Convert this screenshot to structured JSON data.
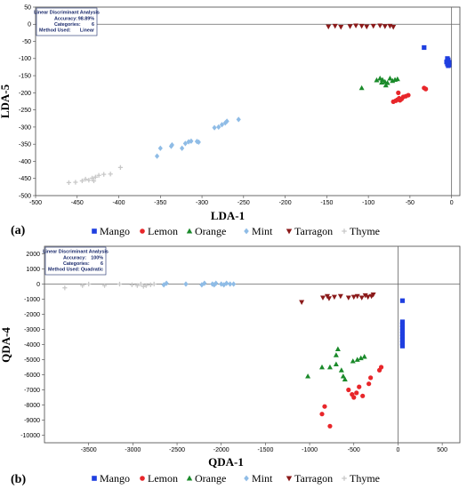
{
  "legend": [
    {
      "name": "Mango",
      "color": "#1f3fe0",
      "shape": "square"
    },
    {
      "name": "Lemon",
      "color": "#e8262a",
      "shape": "circle"
    },
    {
      "name": "Orange",
      "color": "#1a8a2a",
      "shape": "triangle-up"
    },
    {
      "name": "Mint",
      "color": "#8fbce6",
      "shape": "diamond"
    },
    {
      "name": "Tarragon",
      "color": "#8b1a1a",
      "shape": "triangle-down"
    },
    {
      "name": "Thyme",
      "color": "#c8c8c8",
      "shape": "plus"
    }
  ],
  "chart_data": [
    {
      "type": "scatter",
      "panel_label": "(a)",
      "xlabel": "LDA-1",
      "ylabel": "LDA-5",
      "xlim": [
        -500,
        10
      ],
      "ylim": [
        -500,
        50
      ],
      "xticks": [
        -500,
        -450,
        -400,
        -350,
        -300,
        -250,
        -200,
        -150,
        -100,
        -50,
        0
      ],
      "yticks": [
        50,
        0,
        -50,
        -100,
        -150,
        -200,
        -250,
        -300,
        -350,
        -400,
        -450,
        -500
      ],
      "info": {
        "title": "Linear Discriminant Analysis",
        "rows": [
          {
            "label": "Accuracy:",
            "value": "98.89%"
          },
          {
            "label": "Categories:",
            "value": "6"
          },
          {
            "label": "Method Used:",
            "value": "Linear"
          }
        ]
      },
      "series": [
        {
          "name": "Mango",
          "points": [
            [
              -33,
              -68
            ],
            [
              -5,
              -100
            ],
            [
              -4,
              -104
            ],
            [
              -5,
              -108
            ],
            [
              -3,
              -111
            ],
            [
              -4,
              -113
            ],
            [
              -5,
              -116
            ],
            [
              -3,
              -119
            ],
            [
              -4,
              -121
            ],
            [
              -6,
              -110
            ]
          ]
        },
        {
          "name": "Lemon",
          "points": [
            [
              -70,
              -226
            ],
            [
              -67,
              -223
            ],
            [
              -65,
              -220
            ],
            [
              -62,
              -222
            ],
            [
              -60,
              -218
            ],
            [
              -63,
              -216
            ],
            [
              -58,
              -212
            ],
            [
              -55,
              -210
            ],
            [
              -52,
              -207
            ],
            [
              -33,
              -186
            ],
            [
              -31,
              -189
            ],
            [
              -64,
              -200
            ]
          ]
        },
        {
          "name": "Orange",
          "points": [
            [
              -108,
              -186
            ],
            [
              -90,
              -163
            ],
            [
              -86,
              -158
            ],
            [
              -83,
              -162
            ],
            [
              -80,
              -168
            ],
            [
              -77,
              -171
            ],
            [
              -74,
              -158
            ],
            [
              -71,
              -165
            ],
            [
              -68,
              -162
            ],
            [
              -65,
              -160
            ],
            [
              -79,
              -178
            ],
            [
              -84,
              -170
            ]
          ]
        },
        {
          "name": "Mint",
          "points": [
            [
              -354,
              -385
            ],
            [
              -350,
              -362
            ],
            [
              -337,
              -356
            ],
            [
              -336,
              -352
            ],
            [
              -324,
              -362
            ],
            [
              -320,
              -348
            ],
            [
              -316,
              -343
            ],
            [
              -313,
              -341
            ],
            [
              -306,
              -342
            ],
            [
              -304,
              -344
            ],
            [
              -285,
              -302
            ],
            [
              -280,
              -300
            ],
            [
              -276,
              -293
            ],
            [
              -272,
              -288
            ],
            [
              -270,
              -283
            ],
            [
              -256,
              -278
            ]
          ]
        },
        {
          "name": "Tarragon",
          "points": [
            [
              -148,
              -7
            ],
            [
              -140,
              -5
            ],
            [
              -133,
              -8
            ],
            [
              -122,
              -6
            ],
            [
              -115,
              -4
            ],
            [
              -108,
              -5
            ],
            [
              -102,
              -7
            ],
            [
              -94,
              -5
            ],
            [
              -86,
              -4
            ],
            [
              -80,
              -6
            ],
            [
              -74,
              -5
            ],
            [
              -70,
              -8
            ]
          ]
        },
        {
          "name": "Thyme",
          "points": [
            [
              -460,
              -462
            ],
            [
              -452,
              -461
            ],
            [
              -444,
              -457
            ],
            [
              -440,
              -452
            ],
            [
              -436,
              -455
            ],
            [
              -432,
              -449
            ],
            [
              -428,
              -446
            ],
            [
              -424,
              -441
            ],
            [
              -418,
              -438
            ],
            [
              -410,
              -437
            ],
            [
              -398,
              -418
            ],
            [
              -430,
              -457
            ]
          ]
        }
      ]
    },
    {
      "type": "scatter",
      "panel_label": "(b)",
      "xlabel": "QDA-1",
      "ylabel": "QDA-4",
      "xlim": [
        -4000,
        700
      ],
      "ylim": [
        -10500,
        2500
      ],
      "xticks": [
        -3500,
        -3000,
        -2500,
        -2000,
        -1500,
        -1000,
        -500,
        0,
        500
      ],
      "yticks": [
        2000,
        1000,
        0,
        -1000,
        -2000,
        -3000,
        -4000,
        -5000,
        -6000,
        -7000,
        -8000,
        -9000,
        -10000
      ],
      "info": {
        "title": "Linear Discriminant Analysis",
        "rows": [
          {
            "label": "Accuracy:",
            "value": "100%"
          },
          {
            "label": "Categories:",
            "value": "6"
          },
          {
            "label": "Method Used:",
            "value": "Quadratic"
          }
        ]
      },
      "series": [
        {
          "name": "Mango",
          "points": [
            [
              50,
              -1100
            ],
            [
              50,
              -2500
            ],
            [
              50,
              -2700
            ],
            [
              50,
              -2900
            ],
            [
              50,
              -3100
            ],
            [
              50,
              -3300
            ],
            [
              50,
              -3500
            ],
            [
              50,
              -3700
            ],
            [
              50,
              -3900
            ],
            [
              50,
              -4100
            ]
          ]
        },
        {
          "name": "Lemon",
          "points": [
            [
              -860,
              -8600
            ],
            [
              -830,
              -8100
            ],
            [
              -770,
              -9400
            ],
            [
              -560,
              -7000
            ],
            [
              -520,
              -7300
            ],
            [
              -500,
              -7500
            ],
            [
              -470,
              -7200
            ],
            [
              -440,
              -6800
            ],
            [
              -400,
              -7400
            ],
            [
              -330,
              -6600
            ],
            [
              -310,
              -6200
            ],
            [
              -210,
              -5700
            ],
            [
              -190,
              -5500
            ]
          ]
        },
        {
          "name": "Orange",
          "points": [
            [
              -1020,
              -6100
            ],
            [
              -860,
              -5500
            ],
            [
              -770,
              -5500
            ],
            [
              -700,
              -4700
            ],
            [
              -680,
              -4300
            ],
            [
              -640,
              -5700
            ],
            [
              -620,
              -6100
            ],
            [
              -600,
              -6300
            ],
            [
              -510,
              -5100
            ],
            [
              -460,
              -5000
            ],
            [
              -420,
              -4900
            ],
            [
              -380,
              -4800
            ],
            [
              -700,
              -5300
            ]
          ]
        },
        {
          "name": "Mint",
          "points": [
            [
              -2650,
              -50
            ],
            [
              -2620,
              50
            ],
            [
              -2400,
              0
            ],
            [
              -2220,
              -50
            ],
            [
              -2190,
              50
            ],
            [
              -2100,
              0
            ],
            [
              -2080,
              -50
            ],
            [
              -2060,
              50
            ],
            [
              -2000,
              0
            ],
            [
              -1970,
              -50
            ],
            [
              -1940,
              50
            ],
            [
              -1900,
              0
            ],
            [
              -1860,
              0
            ]
          ]
        },
        {
          "name": "Tarragon",
          "points": [
            [
              -1090,
              -1200
            ],
            [
              -850,
              -900
            ],
            [
              -800,
              -800
            ],
            [
              -780,
              -950
            ],
            [
              -720,
              -850
            ],
            [
              -650,
              -800
            ],
            [
              -560,
              -900
            ],
            [
              -500,
              -850
            ],
            [
              -460,
              -800
            ],
            [
              -410,
              -900
            ],
            [
              -370,
              -750
            ],
            [
              -340,
              -850
            ],
            [
              -300,
              -800
            ],
            [
              -280,
              -700
            ]
          ]
        },
        {
          "name": "Thyme",
          "points": [
            [
              -3770,
              -250
            ],
            [
              -3570,
              -100
            ],
            [
              -3500,
              0
            ],
            [
              -3320,
              -100
            ],
            [
              -3150,
              0
            ],
            [
              -3010,
              -50
            ],
            [
              -2950,
              -100
            ],
            [
              -2910,
              0
            ],
            [
              -2880,
              -150
            ],
            [
              -2850,
              -100
            ],
            [
              -2800,
              -50
            ],
            [
              -2760,
              0
            ]
          ]
        }
      ]
    }
  ]
}
